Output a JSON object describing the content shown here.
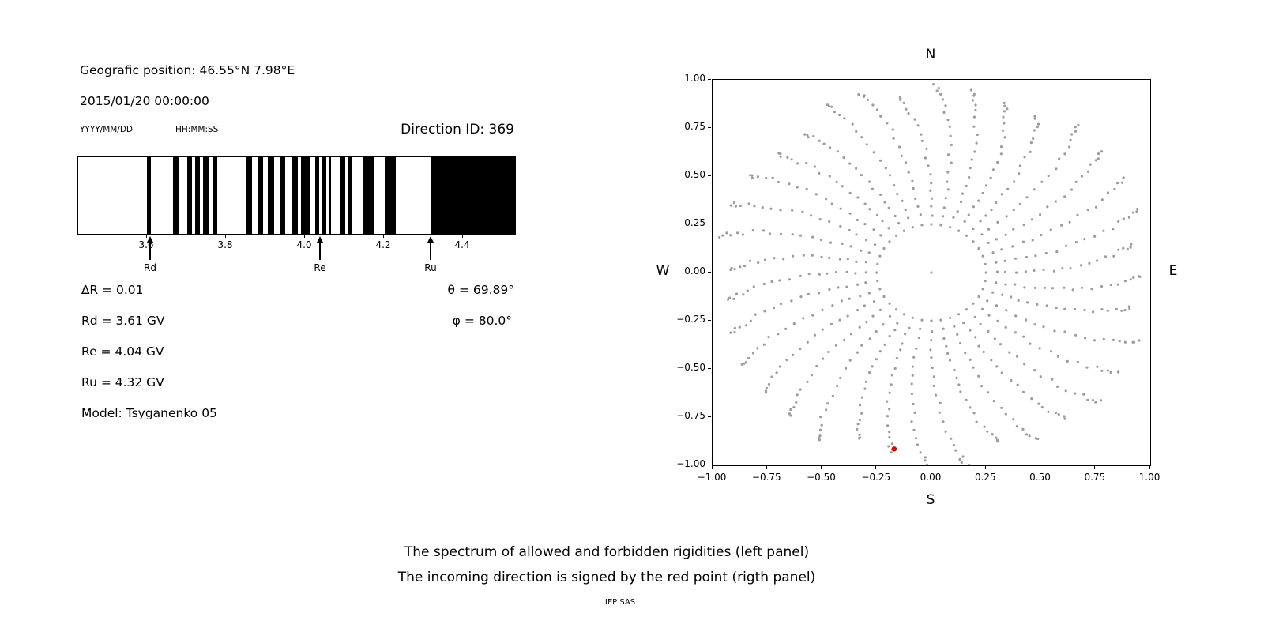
{
  "page": {
    "background": "#ffffff"
  },
  "left_panel": {
    "geo_position": "Geografic position: 46.55°N 7.98°E",
    "datetime": "2015/01/20 00:00:00",
    "date_format": "YYYY/MM/DD",
    "time_format": "HH:MM:SS",
    "direction_id": "Direction ID: 369",
    "delta_r": "∆R = 0.01",
    "theta": "θ = 69.89°",
    "rd": "Rd = 3.61 GV",
    "phi": "φ = 80.0°",
    "re": "Re = 4.04 GV",
    "ru": "Ru = 4.32 GV",
    "model": "Model: Tsyganenko 05"
  },
  "caption": {
    "line1": "The spectrum of allowed and forbidden rigidities (left panel)",
    "line2": "The incoming direction is signed by the red point (rigth panel)",
    "credit": "IEP SAS"
  },
  "chart_data": [
    {
      "id": "rigidity-spectrum",
      "type": "bar",
      "description": "Barcode-style spectrum: black bands are forbidden rigidities, white gaps allowed",
      "xlim": [
        3.426,
        4.532
      ],
      "xticks": [
        3.6,
        3.8,
        4.0,
        4.2,
        4.4
      ],
      "xtick_labels": [
        "3.6",
        "3.8",
        "4.0",
        "4.2",
        "4.4"
      ],
      "bar_color": "#000000",
      "background": "#ffffff",
      "forbidden_bands_GV": [
        [
          3.6,
          3.61
        ],
        [
          3.666,
          3.682
        ],
        [
          3.702,
          3.714
        ],
        [
          3.722,
          3.734
        ],
        [
          3.742,
          3.758
        ],
        [
          3.766,
          3.778
        ],
        [
          3.85,
          3.866
        ],
        [
          3.882,
          3.894
        ],
        [
          3.906,
          3.922
        ],
        [
          3.938,
          3.95
        ],
        [
          3.966,
          3.982
        ],
        [
          3.99,
          4.014
        ],
        [
          4.026,
          4.036
        ],
        [
          4.042,
          4.054
        ],
        [
          4.06,
          4.066
        ],
        [
          4.09,
          4.102
        ],
        [
          4.11,
          4.118
        ],
        [
          4.146,
          4.174
        ],
        [
          4.202,
          4.23
        ],
        [
          4.32,
          4.532
        ]
      ],
      "markers": [
        {
          "label": "Rd",
          "value_GV": 3.61
        },
        {
          "label": "Re",
          "value_GV": 4.04
        },
        {
          "label": "Ru",
          "value_GV": 4.32
        }
      ]
    },
    {
      "id": "direction-map",
      "type": "scatter",
      "description": "Unit-circle map of incoming directions; gray dots are direction grid, red dot is the incoming direction",
      "xlim": [
        -1.0,
        1.0
      ],
      "ylim": [
        -1.0,
        1.0
      ],
      "xticks": [
        -1.0,
        -0.75,
        -0.5,
        -0.25,
        0.0,
        0.25,
        0.5,
        0.75,
        1.0
      ],
      "xtick_labels": [
        "−1.00",
        "−0.75",
        "−0.50",
        "−0.25",
        "0.00",
        "0.25",
        "0.50",
        "0.75",
        "1.00"
      ],
      "yticks": [
        -1.0,
        -0.75,
        -0.5,
        -0.25,
        0.0,
        0.25,
        0.5,
        0.75,
        1.0
      ],
      "ytick_labels": [
        "−1.00",
        "−0.75",
        "−0.50",
        "−0.25",
        "0.00",
        "0.25",
        "0.50",
        "0.75",
        "1.00"
      ],
      "compass": {
        "n": "N",
        "s": "S",
        "e": "E",
        "w": "W"
      },
      "dot_color": "#9c9c9c",
      "dot_radius_px": 1.6,
      "pattern": {
        "azimuth_step_deg": 10,
        "center_dot": true,
        "ring_radius": 0.25,
        "spoke_radii": [
          0.3,
          0.345,
          0.39,
          0.435,
          0.48,
          0.525,
          0.57,
          0.615,
          0.66,
          0.705,
          0.75,
          0.79,
          0.83,
          0.865,
          0.895,
          0.92,
          0.94,
          0.955,
          0.965
        ],
        "rmax_base": 0.92,
        "rmax_var": 0.1,
        "swirl_deg": 9,
        "angle_jitter_deg": 1.6,
        "radius_jitter": 0.012
      },
      "red_point": {
        "x": -0.17,
        "y": -0.915,
        "color": "#e00000"
      }
    }
  ]
}
